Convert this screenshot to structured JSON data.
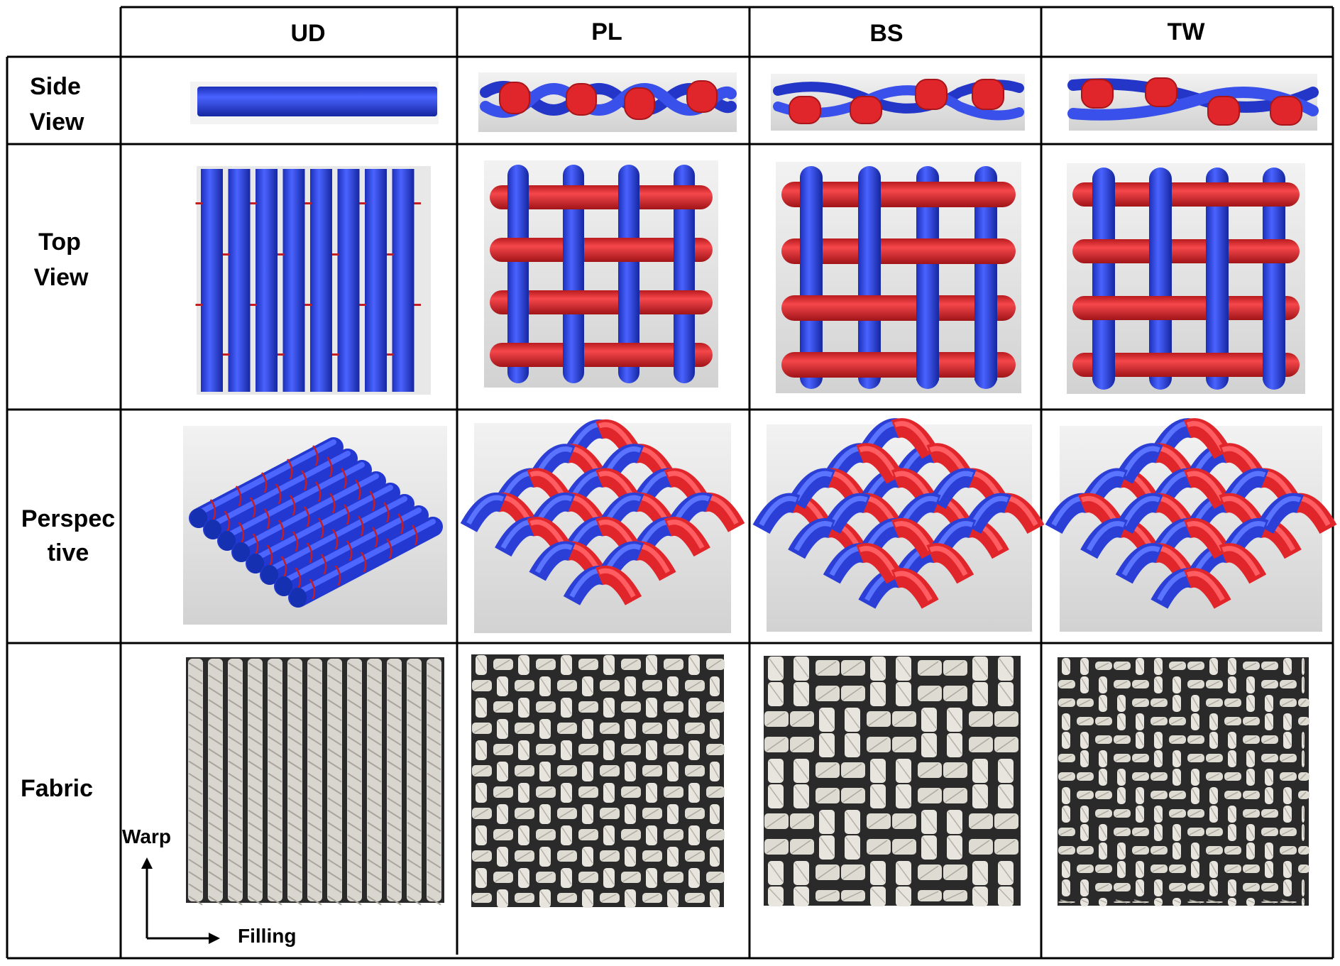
{
  "columns": [
    {
      "key": "UD",
      "label": "UD"
    },
    {
      "key": "PL",
      "label": "PL"
    },
    {
      "key": "BS",
      "label": "BS"
    },
    {
      "key": "TW",
      "label": "TW"
    }
  ],
  "rows": [
    {
      "key": "side",
      "label_lines": [
        "Side",
        "View"
      ]
    },
    {
      "key": "top",
      "label_lines": [
        "Top",
        "View"
      ]
    },
    {
      "key": "perspective",
      "label_lines": [
        "Perspec",
        "tive"
      ]
    },
    {
      "key": "fabric",
      "label_lines": [
        "Fabric"
      ]
    }
  ],
  "axes": {
    "warp": "Warp",
    "filling": "Filling"
  },
  "colors": {
    "warp_yarn": "#2b3fd6",
    "fill_yarn": "#e0262b",
    "render_bg": "#e4e4e4",
    "fabric_base": "#2a2a2a",
    "fabric_yarn": "#e6e4de",
    "grid_line": "#000000"
  }
}
